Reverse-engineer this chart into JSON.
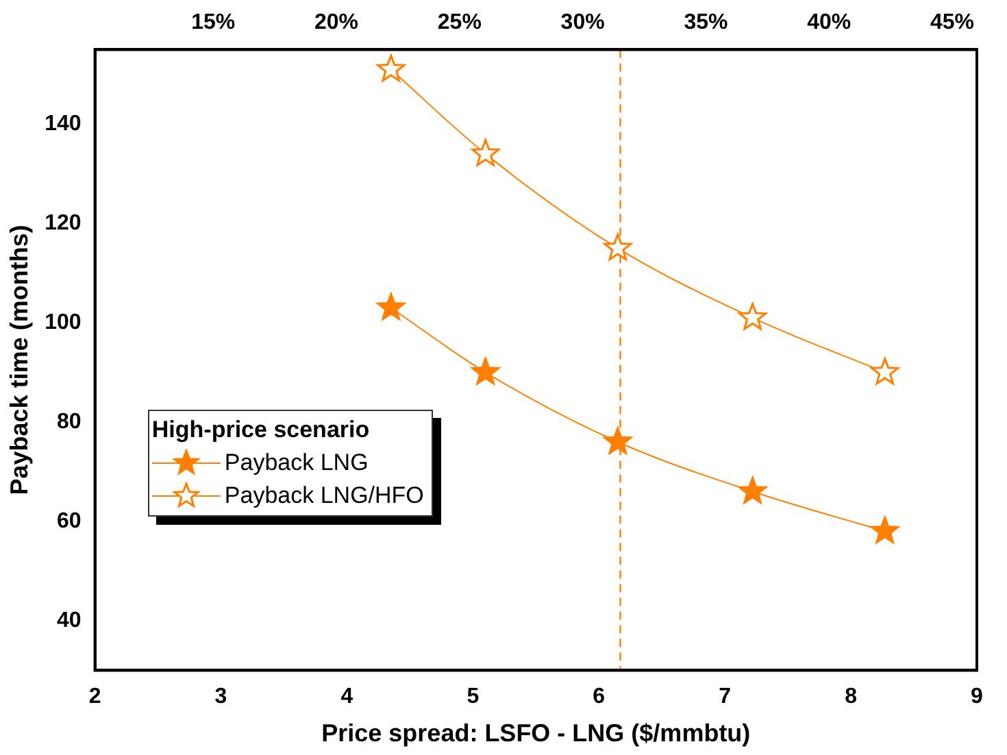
{
  "chart_data": {
    "type": "line",
    "xlabel": "Price spread: LSFO - LNG ($/mmbtu)",
    "ylabel": "Payback time (months)",
    "legend_title": "High-price scenario",
    "x": [
      4.35,
      5.1,
      6.15,
      7.22,
      8.27
    ],
    "series": [
      {
        "name": "Payback LNG",
        "color": "#ff8000",
        "values": [
          103,
          90,
          76,
          66,
          58
        ]
      },
      {
        "name": "Payback LNG/HFO",
        "color": "#ff8000",
        "values": [
          151,
          134,
          115,
          101,
          90
        ]
      }
    ],
    "xlim": [
      2,
      9
    ],
    "xticks": [
      2,
      3,
      4,
      5,
      6,
      7,
      8,
      9
    ],
    "ylim": [
      30,
      155
    ],
    "yticks": [
      40,
      60,
      80,
      100,
      120,
      140
    ],
    "x2lim": [
      10.2,
      46.0
    ],
    "x2ticks": [
      {
        "value": 15,
        "label": "15%"
      },
      {
        "value": 20,
        "label": "20%"
      },
      {
        "value": 25,
        "label": "25%"
      },
      {
        "value": 30,
        "label": "30%"
      },
      {
        "value": 35,
        "label": "35%"
      },
      {
        "value": 40,
        "label": "40%"
      },
      {
        "value": 45,
        "label": "45%"
      }
    ],
    "ref_lines": [
      {
        "axis": "x",
        "value": 6.17,
        "color": "#ff8000",
        "line_style": "dashed"
      }
    ],
    "grid": false,
    "legend": "left",
    "marker": "star",
    "line_style": "solid"
  }
}
